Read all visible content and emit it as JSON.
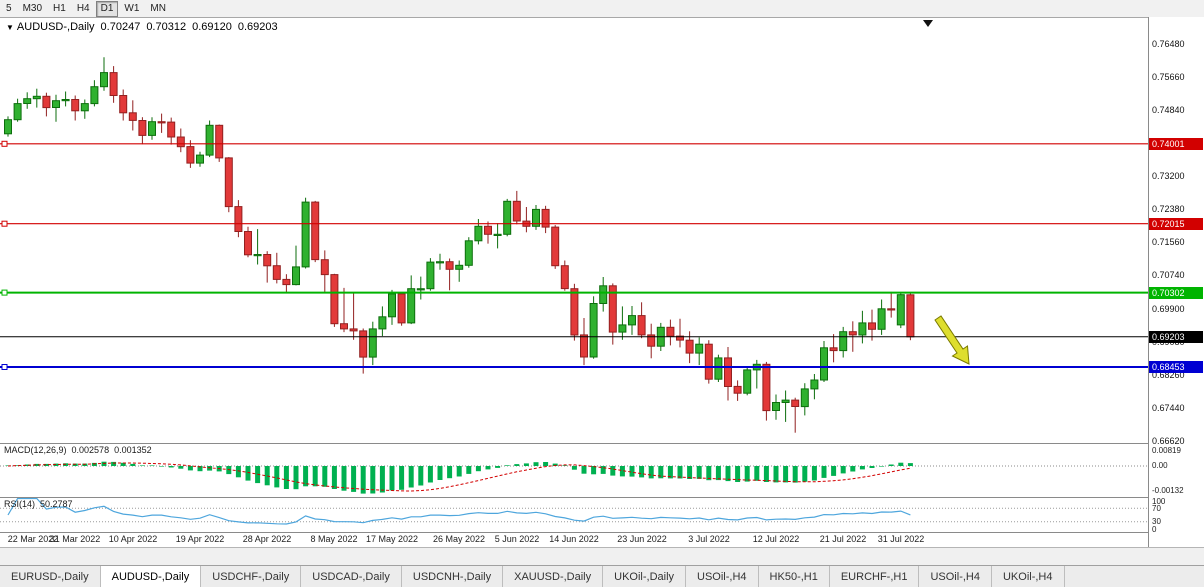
{
  "toolbar": {
    "timeframes": [
      {
        "label": "5",
        "active": false
      },
      {
        "label": "M30",
        "active": false
      },
      {
        "label": "H1",
        "active": false
      },
      {
        "label": "H4",
        "active": false
      },
      {
        "label": "D1",
        "active": true
      },
      {
        "label": "W1",
        "active": false
      },
      {
        "label": "MN",
        "active": false
      }
    ]
  },
  "chart": {
    "type": "candlestick",
    "symbol": "AUDUSD-,Daily",
    "dropdown_icon": "▼",
    "ohlc": {
      "open": "0.70247",
      "high": "0.70312",
      "low": "0.69120",
      "close": "0.69203"
    },
    "price_axis_labels": [
      {
        "text": "0.76480",
        "price": 0.7648
      },
      {
        "text": "0.75660",
        "price": 0.7566
      },
      {
        "text": "0.74840",
        "price": 0.7484
      },
      {
        "text": "0.73200",
        "price": 0.732
      },
      {
        "text": "0.72380",
        "price": 0.7238
      },
      {
        "text": "0.71560",
        "price": 0.7156
      },
      {
        "text": "0.70740",
        "price": 0.7074
      },
      {
        "text": "0.69900",
        "price": 0.699
      },
      {
        "text": "0.69080",
        "price": 0.6908
      },
      {
        "text": "0.68260",
        "price": 0.6826
      },
      {
        "text": "0.67440",
        "price": 0.6744
      },
      {
        "text": "0.66620",
        "price": 0.6662
      }
    ],
    "hlines": [
      {
        "price": 0.74001,
        "label": "0.74001",
        "color": "#d20000",
        "width": 1.2
      },
      {
        "price": 0.72015,
        "label": "0.72015",
        "color": "#d20000",
        "width": 1.2
      },
      {
        "price": 0.70302,
        "label": "0.70302",
        "color": "#00b400",
        "width": 2
      },
      {
        "price": 0.68453,
        "label": "0.68453",
        "color": "#0000d2",
        "width": 2
      }
    ],
    "bid_line": {
      "price": 0.69203,
      "label": "0.69203",
      "color": "#000000"
    },
    "annotation_arrow": {
      "name": "sell-arrow",
      "fill": "#dede2e",
      "outline": "#7a7a00"
    },
    "dates": [
      {
        "label": "22 Mar 2022",
        "i": 0
      },
      {
        "label": "31 Mar 2022",
        "i": 7
      },
      {
        "label": "10 Apr 2022",
        "i": 13
      },
      {
        "label": "19 Apr 2022",
        "i": 20
      },
      {
        "label": "28 Apr 2022",
        "i": 27
      },
      {
        "label": "8 May 2022",
        "i": 34
      },
      {
        "label": "17 May 2022",
        "i": 40
      },
      {
        "label": "26 May 2022",
        "i": 47
      },
      {
        "label": "5 Jun 2022",
        "i": 53
      },
      {
        "label": "14 Jun 2022",
        "i": 59
      },
      {
        "label": "23 Jun 2022",
        "i": 66
      },
      {
        "label": "3 Jul 2022",
        "i": 73
      },
      {
        "label": "12 Jul 2022",
        "i": 80
      },
      {
        "label": "21 Jul 2022",
        "i": 87
      },
      {
        "label": "31 Jul 2022",
        "i": 93
      }
    ],
    "candles": [
      [
        0.7425,
        0.7468,
        0.7418,
        0.746
      ],
      [
        0.746,
        0.7512,
        0.7455,
        0.75
      ],
      [
        0.75,
        0.7528,
        0.7487,
        0.7512
      ],
      [
        0.7512,
        0.7537,
        0.749,
        0.7518
      ],
      [
        0.7518,
        0.7527,
        0.7468,
        0.749
      ],
      [
        0.749,
        0.7522,
        0.7455,
        0.7507
      ],
      [
        0.7507,
        0.753,
        0.7493,
        0.751
      ],
      [
        0.751,
        0.752,
        0.7458,
        0.7482
      ],
      [
        0.7482,
        0.751,
        0.7462,
        0.75
      ],
      [
        0.75,
        0.7558,
        0.7493,
        0.7542
      ],
      [
        0.7542,
        0.7615,
        0.7532,
        0.7577
      ],
      [
        0.7577,
        0.7593,
        0.7502,
        0.752
      ],
      [
        0.752,
        0.7535,
        0.7458,
        0.7477
      ],
      [
        0.7477,
        0.7508,
        0.7433,
        0.7458
      ],
      [
        0.7458,
        0.7466,
        0.7399,
        0.7421
      ],
      [
        0.7421,
        0.7466,
        0.741,
        0.7455
      ],
      [
        0.7455,
        0.7475,
        0.7427,
        0.7454
      ],
      [
        0.7454,
        0.7465,
        0.7398,
        0.7417
      ],
      [
        0.7417,
        0.7438,
        0.7379,
        0.7393
      ],
      [
        0.7393,
        0.7409,
        0.734,
        0.7352
      ],
      [
        0.7352,
        0.738,
        0.7343,
        0.7372
      ],
      [
        0.7372,
        0.7458,
        0.7367,
        0.7446
      ],
      [
        0.7446,
        0.7448,
        0.7355,
        0.7365
      ],
      [
        0.7365,
        0.7367,
        0.723,
        0.7244
      ],
      [
        0.7244,
        0.726,
        0.7168,
        0.7182
      ],
      [
        0.7182,
        0.7194,
        0.7118,
        0.7124
      ],
      [
        0.7124,
        0.7188,
        0.71,
        0.7125
      ],
      [
        0.7125,
        0.7133,
        0.7055,
        0.7097
      ],
      [
        0.7097,
        0.7129,
        0.7053,
        0.7063
      ],
      [
        0.7063,
        0.7076,
        0.7029,
        0.705
      ],
      [
        0.705,
        0.7147,
        0.7048,
        0.7094
      ],
      [
        0.7094,
        0.7266,
        0.709,
        0.7255
      ],
      [
        0.7255,
        0.7258,
        0.7106,
        0.7112
      ],
      [
        0.7112,
        0.7135,
        0.7032,
        0.7075
      ],
      [
        0.7075,
        0.7077,
        0.6945,
        0.6953
      ],
      [
        0.6953,
        0.7042,
        0.6932,
        0.694
      ],
      [
        0.694,
        0.7028,
        0.6913,
        0.6935
      ],
      [
        0.6935,
        0.6941,
        0.6829,
        0.687
      ],
      [
        0.687,
        0.6958,
        0.685,
        0.694
      ],
      [
        0.694,
        0.6996,
        0.6922,
        0.697
      ],
      [
        0.697,
        0.7037,
        0.695,
        0.7027
      ],
      [
        0.7027,
        0.7031,
        0.6948,
        0.6955
      ],
      [
        0.6955,
        0.7073,
        0.6952,
        0.704
      ],
      [
        0.704,
        0.707,
        0.7013,
        0.704
      ],
      [
        0.704,
        0.7116,
        0.7035,
        0.7106
      ],
      [
        0.7106,
        0.7127,
        0.7087,
        0.7107
      ],
      [
        0.7107,
        0.7115,
        0.7036,
        0.7088
      ],
      [
        0.7088,
        0.711,
        0.7057,
        0.7098
      ],
      [
        0.7098,
        0.7168,
        0.7092,
        0.7159
      ],
      [
        0.7159,
        0.7213,
        0.715,
        0.7195
      ],
      [
        0.7195,
        0.7207,
        0.7152,
        0.7175
      ],
      [
        0.7175,
        0.7203,
        0.714,
        0.7175
      ],
      [
        0.7175,
        0.7263,
        0.717,
        0.7257
      ],
      [
        0.7257,
        0.7283,
        0.72,
        0.7208
      ],
      [
        0.7208,
        0.7243,
        0.718,
        0.7195
      ],
      [
        0.7195,
        0.7248,
        0.7186,
        0.7237
      ],
      [
        0.7237,
        0.7246,
        0.7178,
        0.7193
      ],
      [
        0.7193,
        0.7198,
        0.7089,
        0.7097
      ],
      [
        0.7097,
        0.711,
        0.7035,
        0.704
      ],
      [
        0.704,
        0.7052,
        0.6911,
        0.6925
      ],
      [
        0.6925,
        0.6967,
        0.685,
        0.687
      ],
      [
        0.687,
        0.7021,
        0.6866,
        0.7003
      ],
      [
        0.7003,
        0.7069,
        0.6983,
        0.7047
      ],
      [
        0.7047,
        0.7053,
        0.6901,
        0.6932
      ],
      [
        0.6932,
        0.6996,
        0.6913,
        0.695
      ],
      [
        0.695,
        0.6997,
        0.6925,
        0.6973
      ],
      [
        0.6973,
        0.7006,
        0.6917,
        0.6925
      ],
      [
        0.6925,
        0.6953,
        0.6867,
        0.6897
      ],
      [
        0.6897,
        0.6955,
        0.6885,
        0.6944
      ],
      [
        0.6944,
        0.6963,
        0.6899,
        0.6922
      ],
      [
        0.6922,
        0.6965,
        0.6894,
        0.6912
      ],
      [
        0.6912,
        0.6934,
        0.6855,
        0.688
      ],
      [
        0.688,
        0.6919,
        0.685,
        0.6902
      ],
      [
        0.6902,
        0.6912,
        0.6804,
        0.6815
      ],
      [
        0.6815,
        0.6876,
        0.6808,
        0.6868
      ],
      [
        0.6868,
        0.6895,
        0.6762,
        0.6797
      ],
      [
        0.6797,
        0.6812,
        0.6761,
        0.678
      ],
      [
        0.678,
        0.6846,
        0.6775,
        0.6838
      ],
      [
        0.6838,
        0.6863,
        0.6792,
        0.6852
      ],
      [
        0.6852,
        0.6858,
        0.6712,
        0.6737
      ],
      [
        0.6737,
        0.6777,
        0.6714,
        0.6757
      ],
      [
        0.6757,
        0.6787,
        0.6709,
        0.6763
      ],
      [
        0.6763,
        0.6769,
        0.6682,
        0.6747
      ],
      [
        0.6747,
        0.6805,
        0.6725,
        0.6791
      ],
      [
        0.6791,
        0.6828,
        0.6765,
        0.6813
      ],
      [
        0.6813,
        0.691,
        0.6808,
        0.6893
      ],
      [
        0.6893,
        0.6927,
        0.6857,
        0.6886
      ],
      [
        0.6886,
        0.6945,
        0.6869,
        0.6933
      ],
      [
        0.6933,
        0.6959,
        0.6883,
        0.6925
      ],
      [
        0.6925,
        0.6985,
        0.6904,
        0.6955
      ],
      [
        0.6955,
        0.6988,
        0.6911,
        0.6939
      ],
      [
        0.6939,
        0.7013,
        0.6925,
        0.699
      ],
      [
        0.699,
        0.7032,
        0.6968,
        0.6987
      ],
      [
        0.695,
        0.7031,
        0.6942,
        0.7025
      ],
      [
        0.70247,
        0.70312,
        0.6912,
        0.69203
      ]
    ]
  },
  "macd": {
    "name": "MACD(12,26,9)",
    "main_value": "0.002578",
    "signal_value": "0.001352",
    "axis": [
      "0.00819",
      "0.00",
      "-0.00132"
    ]
  },
  "rsi": {
    "name": "RSI(14)",
    "value": "50.2787",
    "axis": [
      "100",
      "70",
      "30",
      "0"
    ],
    "levels": [
      70,
      30
    ]
  },
  "tabs": [
    {
      "label": "EURUSD-,Daily",
      "active": false
    },
    {
      "label": "AUDUSD-,Daily",
      "active": true
    },
    {
      "label": "USDCHF-,Daily",
      "active": false
    },
    {
      "label": "USDCAD-,Daily",
      "active": false
    },
    {
      "label": "USDCNH-,Daily",
      "active": false
    },
    {
      "label": "XAUUSD-,Daily",
      "active": false
    },
    {
      "label": "UKOil-,Daily",
      "active": false
    },
    {
      "label": "USOil-,H4",
      "active": false
    },
    {
      "label": "HK50-,H1",
      "active": false
    },
    {
      "label": "EURCHF-,H1",
      "active": false
    },
    {
      "label": "USOil-,H4",
      "active": false
    },
    {
      "label": "UKOil-,H4",
      "active": false
    }
  ],
  "colors": {
    "up_fill": "#30b130",
    "up_border": "#0c6e0c",
    "down_fill": "#e23939",
    "down_border": "#922020",
    "macd_bar": "#00b050",
    "macd_signal": "#d20000",
    "rsi_line": "#4ea6dd",
    "level_line": "#9a9a9a"
  }
}
